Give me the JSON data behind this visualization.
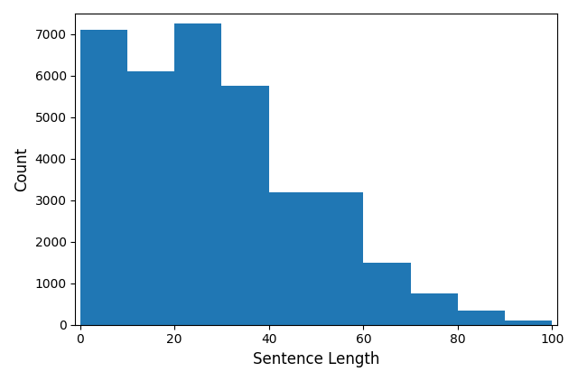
{
  "bin_edges": [
    0,
    5,
    10,
    15,
    20,
    25,
    30,
    35,
    40,
    45,
    50,
    55,
    60,
    65,
    70,
    75,
    80,
    85,
    90,
    95,
    100
  ],
  "counts": [
    7100,
    7100,
    6100,
    6100,
    7250,
    7250,
    5750,
    5750,
    3200,
    3200,
    3200,
    3200,
    1500,
    1500,
    750,
    750,
    350,
    350,
    100,
    100
  ],
  "bar_color": "#2077b4",
  "bar_edgecolor": "#2077b4",
  "xlabel": "Sentence Length",
  "ylabel": "Count",
  "xlim": [
    -1,
    101
  ],
  "ylim": [
    0,
    7500
  ],
  "yticks": [
    0,
    1000,
    2000,
    3000,
    4000,
    5000,
    6000,
    7000
  ],
  "xticks": [
    0,
    20,
    40,
    60,
    80,
    100
  ],
  "figsize": [
    6.4,
    4.22
  ],
  "dpi": 100
}
